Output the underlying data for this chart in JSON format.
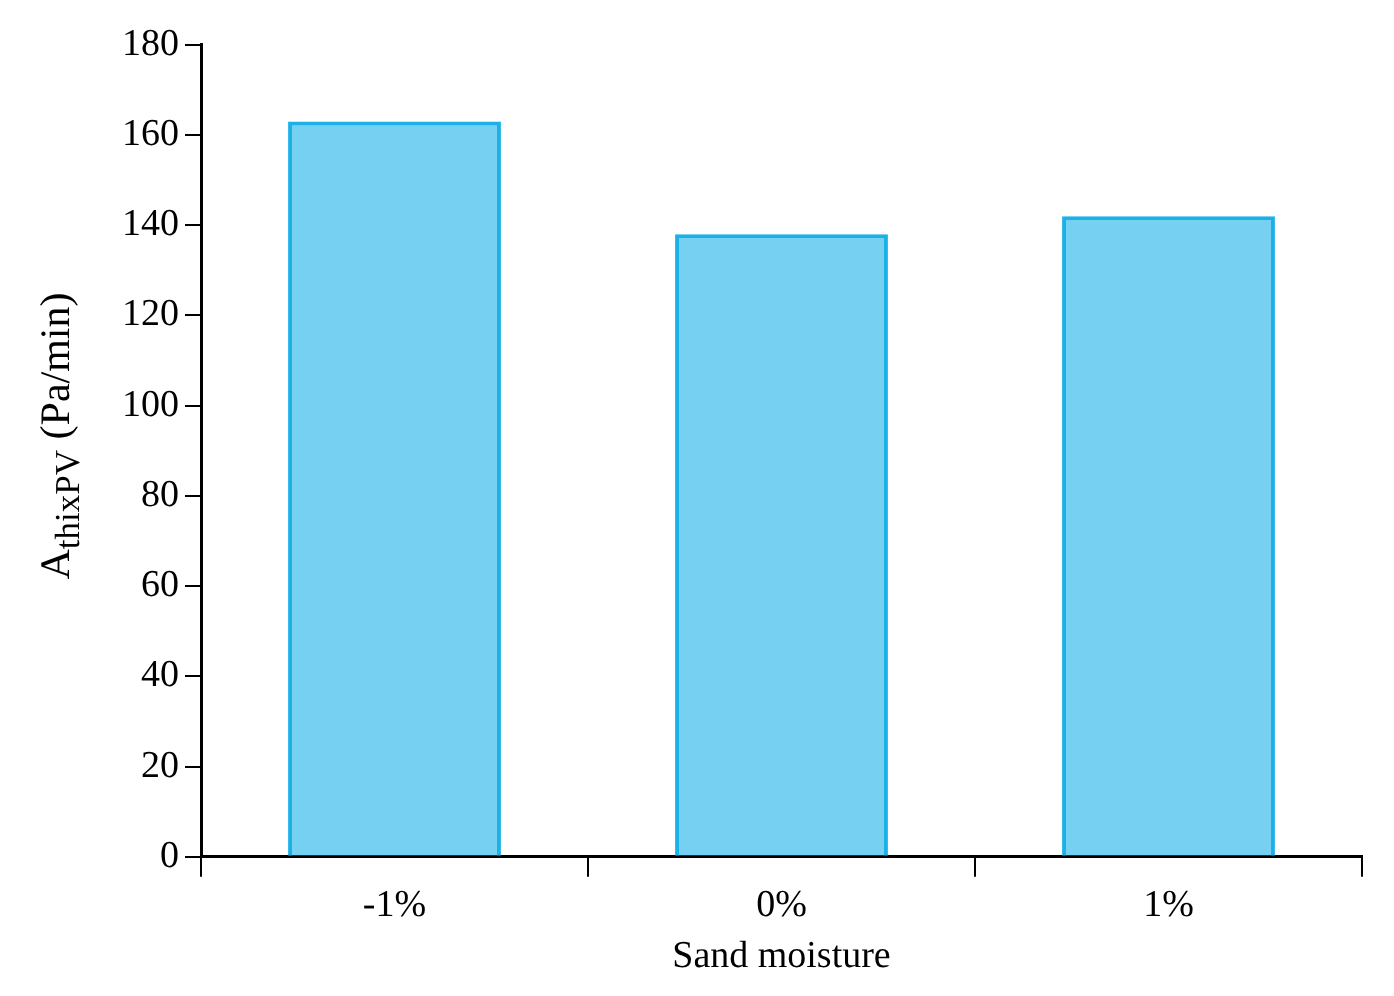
{
  "chart_data": {
    "type": "bar",
    "xlabel": "Sand moisture",
    "ylabel": "A$_{thixPV}$ (Pa/min)",
    "categories": [
      "-1%",
      "0%",
      "1%"
    ],
    "values": [
      163,
      138,
      142
    ],
    "color": "#1ab0e8",
    "ylim": [
      0,
      180
    ],
    "yticks": [
      0,
      20,
      40,
      60,
      80,
      100,
      120,
      140,
      160,
      180
    ],
    "grid": false,
    "legend": false
  }
}
